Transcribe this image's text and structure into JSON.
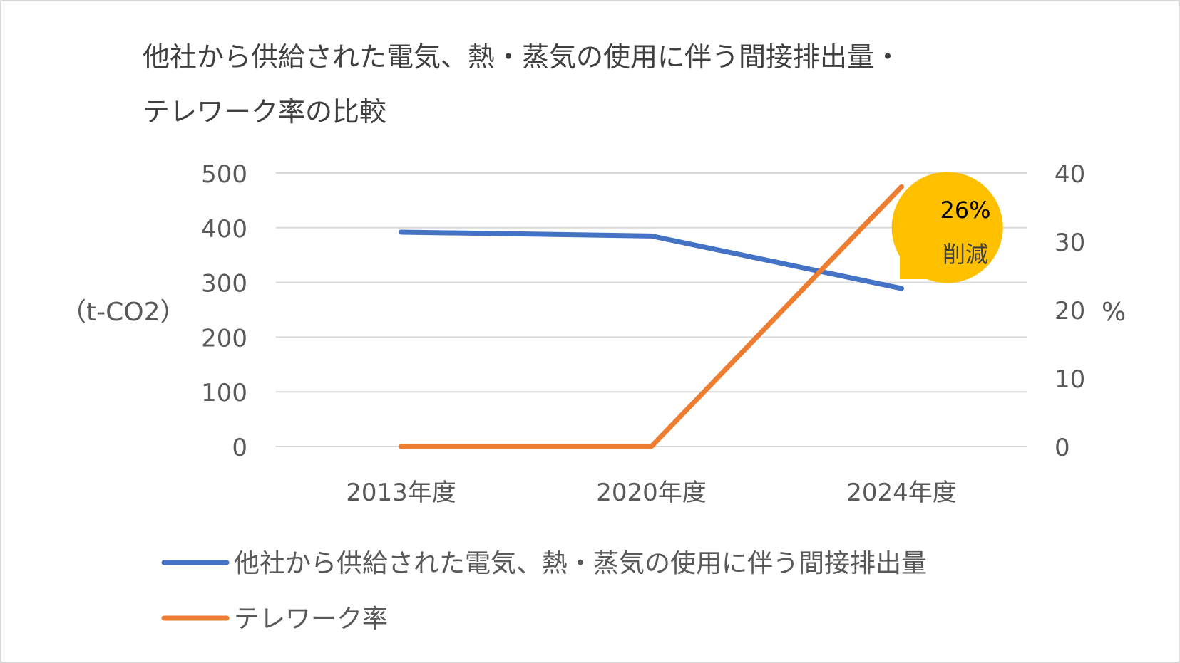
{
  "chart_data": {
    "type": "line",
    "title_line1": "他社から供給された電気、熱・蒸気の使用に伴う間接排出量・",
    "title_line2": "テレワーク率の比較",
    "categories": [
      "2013年度",
      "2020年度",
      "2024年度"
    ],
    "ylabel_left": "（t-CO2）",
    "ylabel_right": "%",
    "ylim_left": [
      0,
      500
    ],
    "ylim_right": [
      0,
      40
    ],
    "yticks_left": [
      "0",
      "100",
      "200",
      "300",
      "400",
      "500"
    ],
    "yticks_right": [
      "0",
      "10",
      "20",
      "30",
      "40"
    ],
    "grid": true,
    "legend_position": "bottom",
    "series": [
      {
        "name": "他社から供給された電気、熱・蒸気の使用に伴う間接排出量",
        "axis": "left",
        "color": "#4472C4",
        "values": [
          392,
          385,
          289
        ]
      },
      {
        "name": "テレワーク率",
        "axis": "right",
        "color": "#ED7D31",
        "values": [
          0,
          0,
          38
        ]
      }
    ],
    "annotation": {
      "line1": "26%",
      "line2": "削減",
      "color": "#FFC000"
    }
  }
}
